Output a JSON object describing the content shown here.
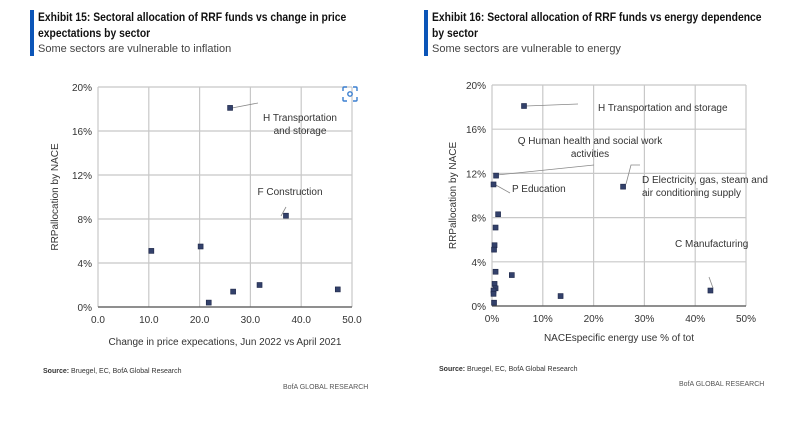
{
  "colors": {
    "accent": "#0b55b8",
    "marker": "#33416b",
    "grid": "#c8c8c8"
  },
  "chart_data": [
    {
      "type": "scatter",
      "title": "Exhibit 15: Sectoral allocation of RRF funds vs change in price expectations by sector",
      "title_line1": "Exhibit 15: Sectoral allocation of RRF funds vs change in price",
      "title_line2": "expectations by sector",
      "subtitle": "Some sectors are vulnerable to inflation",
      "xlabel": "Change in price expecations,  Jun 2022  vs April  2021",
      "ylabel": "RRPallocation  by NACE",
      "xlim": [
        0,
        50
      ],
      "ylim": [
        0,
        20
      ],
      "grid": true,
      "xticks": [
        "0.0",
        "10.0",
        "20.0",
        "30.0",
        "40.0",
        "50.0"
      ],
      "yticks": [
        "0%",
        "4%",
        "8%",
        "12%",
        "16%",
        "20%"
      ],
      "points": [
        {
          "x": 10.5,
          "y": 5.1
        },
        {
          "x": 20.2,
          "y": 5.5
        },
        {
          "x": 26.0,
          "y": 18.1
        },
        {
          "x": 37.0,
          "y": 8.3
        },
        {
          "x": 21.8,
          "y": 0.4
        },
        {
          "x": 26.6,
          "y": 1.4
        },
        {
          "x": 31.8,
          "y": 2.0
        },
        {
          "x": 47.2,
          "y": 1.6
        }
      ],
      "annotations": [
        {
          "lines": [
            "H Transportation",
            "and storage"
          ]
        },
        {
          "lines": [
            "F Construction"
          ]
        }
      ],
      "source_label": "Source:",
      "source": " Bruegel, EC, BofA Global Research",
      "brand": "BofA GLOBAL RESEARCH"
    },
    {
      "type": "scatter",
      "title": "Exhibit 16: Sectoral allocation of RRF funds vs energy dependence by sector",
      "title_line1": "Exhibit 16: Sectoral allocation of RRF funds vs energy dependence",
      "title_line2": "by sector",
      "subtitle": "Some sectors are vulnerable to energy",
      "xlabel": "NACEspecific  energy  use % of tot",
      "ylabel": "RRPallocation  by NACE",
      "xlim": [
        0,
        50
      ],
      "ylim": [
        0,
        20
      ],
      "grid": true,
      "xticks": [
        "0%",
        "10%",
        "20%",
        "30%",
        "40%",
        "50%"
      ],
      "yticks": [
        "0%",
        "4%",
        "8%",
        "12%",
        "16%",
        "20%"
      ],
      "points": [
        {
          "x": 6.3,
          "y": 18.1
        },
        {
          "x": 0.8,
          "y": 11.8
        },
        {
          "x": 0.3,
          "y": 11.0
        },
        {
          "x": 25.8,
          "y": 10.8
        },
        {
          "x": 1.2,
          "y": 8.3
        },
        {
          "x": 0.7,
          "y": 7.1
        },
        {
          "x": 0.5,
          "y": 5.5
        },
        {
          "x": 0.4,
          "y": 5.1
        },
        {
          "x": 0.7,
          "y": 3.1
        },
        {
          "x": 3.9,
          "y": 2.8
        },
        {
          "x": 0.5,
          "y": 2.0
        },
        {
          "x": 0.7,
          "y": 1.6
        },
        {
          "x": 0.3,
          "y": 1.4
        },
        {
          "x": 0.3,
          "y": 1.1
        },
        {
          "x": 13.5,
          "y": 0.9
        },
        {
          "x": 43.0,
          "y": 1.4
        },
        {
          "x": 0.4,
          "y": 0.3
        }
      ],
      "annotations": [
        {
          "lines": [
            "H Transportation  and storage"
          ]
        },
        {
          "lines": [
            "Q Human health and social work",
            "activities"
          ]
        },
        {
          "lines": [
            "P Education"
          ]
        },
        {
          "lines": [
            "D Electricity, gas, steam and",
            "air conditioning  supply"
          ]
        },
        {
          "lines": [
            "C Manufacturing"
          ]
        }
      ],
      "source_label": "Source:",
      "source": " Bruegel, EC, BofA Global Research",
      "brand": "BofA GLOBAL RESEARCH"
    }
  ]
}
